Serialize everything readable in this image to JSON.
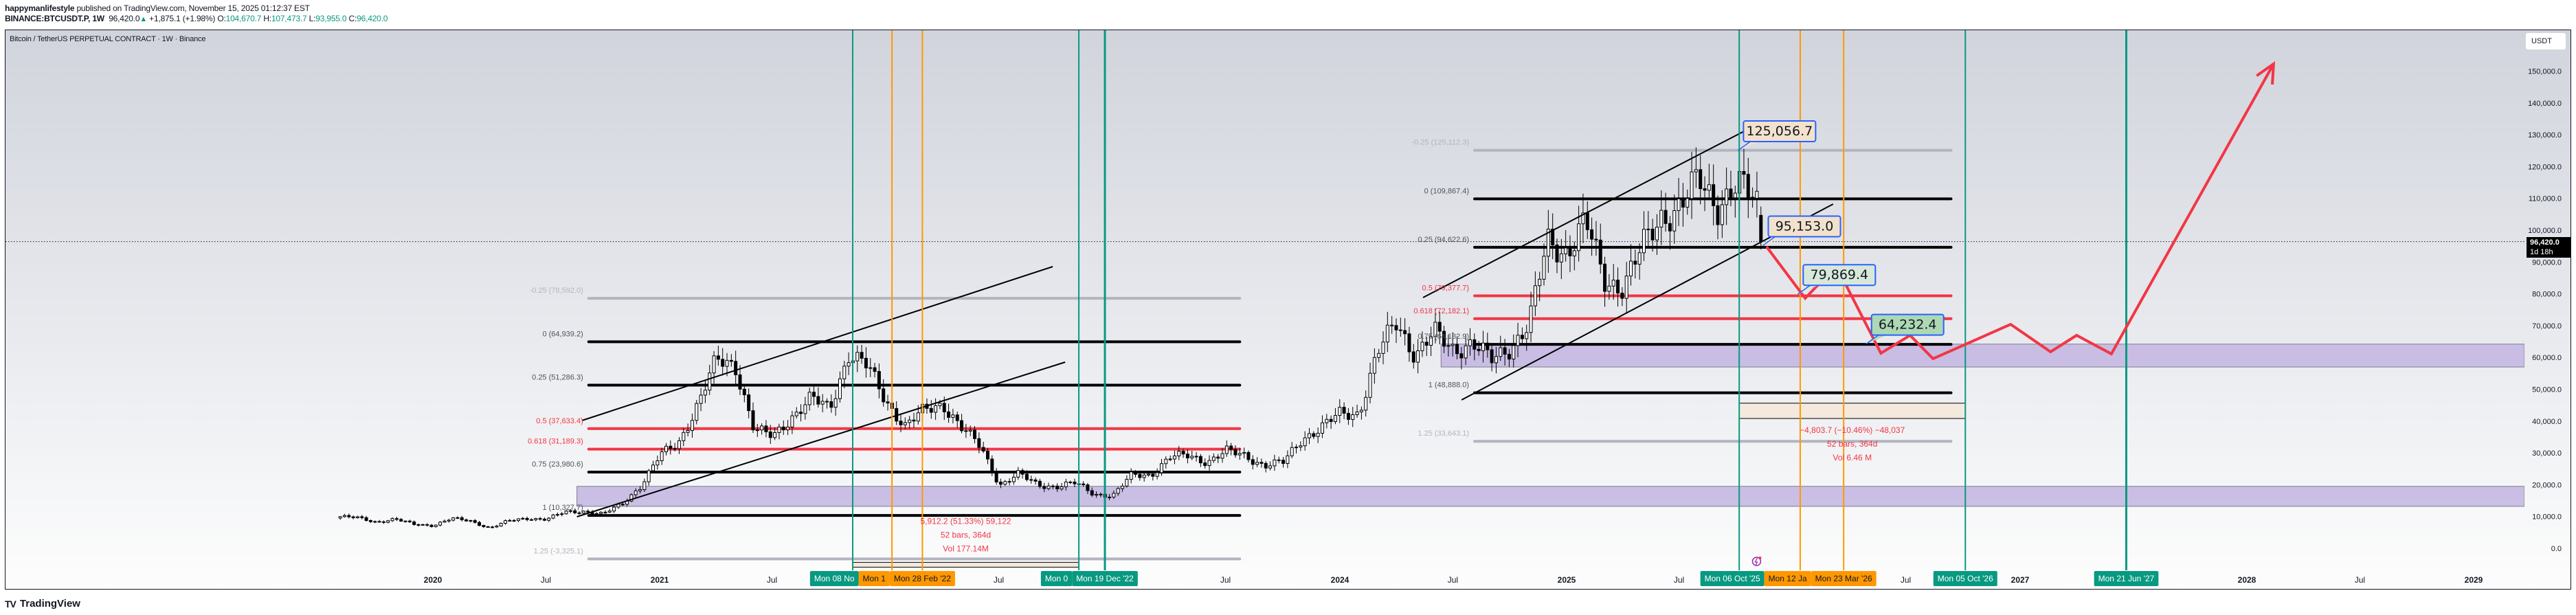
{
  "header": {
    "author": "happymanlifestyle",
    "published": "published on TradingView.com, November 15, 2025 01:12:37 EST",
    "symbol": "BINANCE:BTCUSDT.P, 1W",
    "last": "96,420.0",
    "change": "+1,875.1 (+1.98%)",
    "o_label": "O:",
    "o": "104,670.7",
    "h_label": "H:",
    "h": "107,473.7",
    "l_label": "L:",
    "l": "93,955.0",
    "c_label": "C:",
    "c": "96,420.0"
  },
  "chart_title": "Bitcoin / TetherUS PERPETUAL CONTRACT · 1W · Binance",
  "footer": {
    "brand": "TradingView",
    "logo_icon": "tradingview-logo-icon"
  },
  "price_axis": {
    "currency": "USDT",
    "ticks": [
      "150,000.0",
      "140,000.0",
      "130,000.0",
      "120,000.0",
      "110,000.0",
      "100,000.0",
      "90,000.0",
      "80,000.0",
      "70,000.0",
      "60,000.0",
      "50,000.0",
      "40,000.0",
      "30,000.0",
      "20,000.0",
      "10,000.0",
      "0.0"
    ],
    "tick_values": [
      150000,
      140000,
      130000,
      120000,
      110000,
      100000,
      90000,
      80000,
      70000,
      60000,
      50000,
      40000,
      30000,
      20000,
      10000,
      0
    ],
    "last_price": "96,420.0",
    "last_price_value": 96420,
    "countdown": "1d 18h"
  },
  "time_axis": {
    "ticks": [
      {
        "label": "2020",
        "date": "2020-01-01"
      },
      {
        "label": "Jul",
        "date": "2020-07-01"
      },
      {
        "label": "2021",
        "date": "2021-01-01"
      },
      {
        "label": "Jul",
        "date": "2021-07-01"
      },
      {
        "label": "Jul",
        "date": "2022-07-01"
      },
      {
        "label": "Jul",
        "date": "2023-07-01"
      },
      {
        "label": "2024",
        "date": "2024-01-01"
      },
      {
        "label": "Jul",
        "date": "2024-07-01"
      },
      {
        "label": "2025",
        "date": "2025-01-01"
      },
      {
        "label": "Jul",
        "date": "2025-07-01"
      },
      {
        "label": "Jul",
        "date": "2026-07-01"
      },
      {
        "label": "2027",
        "date": "2027-01-01"
      },
      {
        "label": "2028",
        "date": "2028-01-01"
      },
      {
        "label": "Jul",
        "date": "2028-07-01"
      },
      {
        "label": "2029",
        "date": "2029-01-01"
      }
    ]
  },
  "vertical_markers": [
    {
      "label": "Mon 08 No",
      "date": "2021-11-08",
      "color": "#089981"
    },
    {
      "label": "Mon 1",
      "date": "2022-01-10",
      "color": "#ff9800"
    },
    {
      "label": "Mon 28 Feb '22",
      "date": "2022-02-28",
      "color": "#ff9800"
    },
    {
      "label": "Mon 0",
      "date": "2022-11-07",
      "color": "#089981"
    },
    {
      "label": "Mon 19 Dec '22",
      "date": "2022-12-19",
      "color": "#089981",
      "thick": true
    },
    {
      "label": "Mon 06 Oct '25",
      "date": "2025-10-06",
      "color": "#089981"
    },
    {
      "label": "Mon 12 Ja",
      "date": "2026-01-12",
      "color": "#ff9800"
    },
    {
      "label": "Mon 23 Mar '26",
      "date": "2026-03-23",
      "color": "#ff9800"
    },
    {
      "label": "Mon 05 Oct '26",
      "date": "2026-10-05",
      "color": "#089981"
    },
    {
      "label": "Mon 21 Jun '27",
      "date": "2027-06-21",
      "color": "#089981",
      "thick": true
    }
  ],
  "fib_retracements": [
    {
      "from": "2020-09-08",
      "to": "2023-07-24",
      "levels": [
        {
          "ratio": -0.25,
          "label": "-0.25 (78,592.0)",
          "price": 78592.0
        },
        {
          "ratio": 0,
          "label": "0 (64,939.2)",
          "price": 64939.2
        },
        {
          "ratio": 0.25,
          "label": "0.25 (51,286.3)",
          "price": 51286.3
        },
        {
          "ratio": 0.5,
          "label": "0.5 (37,633.4)",
          "price": 37633.4
        },
        {
          "ratio": 0.618,
          "label": "0.618 (31,189.3)",
          "price": 31189.3
        },
        {
          "ratio": 0.75,
          "label": "0.75 (23,980.6)",
          "price": 23980.6
        },
        {
          "ratio": 1,
          "label": "1 (10,327.7)",
          "price": 10327.7
        },
        {
          "ratio": 1.25,
          "label": "1.25 (-3,325.1)",
          "price": -3325.1
        }
      ]
    },
    {
      "from": "2024-08-05",
      "to": "2026-09-12",
      "levels": [
        {
          "ratio": -0.25,
          "label": "-0.25 (125,112.3)",
          "price": 125112.3
        },
        {
          "ratio": 0,
          "label": "0 (109,867.4)",
          "price": 109867.4
        },
        {
          "ratio": 0.25,
          "label": "0.25 (94,622.6)",
          "price": 94622.6
        },
        {
          "ratio": 0.5,
          "label": "0.5 (79,377.7)",
          "price": 79377.7
        },
        {
          "ratio": 0.618,
          "label": "0.618 (72,182.1)",
          "price": 72182.1
        },
        {
          "ratio": 0.75,
          "label": "0.75 (64,132.9)",
          "price": 64132.9
        },
        {
          "ratio": 1,
          "label": "1 (48,888.0)",
          "price": 48888.0
        },
        {
          "ratio": 1.25,
          "label": "1.25 (33,643.1)",
          "price": 33643.1
        }
      ]
    }
  ],
  "zones": [
    {
      "from": "2020-08-20",
      "price_top": 19500,
      "price_bottom": 13200,
      "color": "#c5b8e2"
    },
    {
      "from": "2024-06-12",
      "price_top": 64200,
      "price_bottom": 57000,
      "color": "#c5b8e2"
    }
  ],
  "trend_lines": [
    {
      "from": [
        "2020-08-28",
        40173
      ],
      "to": [
        "2022-09-26",
        88553
      ]
    },
    {
      "from": [
        "2020-08-20",
        9935
      ],
      "to": [
        "2022-10-16",
        58531
      ]
    },
    {
      "from": [
        "2024-05-14",
        78834
      ],
      "to": [
        "2025-10-16",
        131317
      ]
    },
    {
      "from": [
        "2024-07-15",
        46652
      ],
      "to": [
        "2026-03-06",
        108207
      ]
    }
  ],
  "projection_path": {
    "color": "#f23645",
    "points": [
      [
        "2025-11-19",
        94816
      ],
      [
        "2026-01-20",
        78618
      ],
      [
        "2026-03-11",
        88769
      ],
      [
        "2026-05-22",
        61339
      ],
      [
        "2026-07-08",
        66955
      ],
      [
        "2026-08-14",
        59611
      ],
      [
        "2026-12-17",
        70410
      ],
      [
        "2027-02-19",
        61771
      ],
      [
        "2027-04-02",
        66955
      ],
      [
        "2027-05-28",
        61123
      ],
      [
        "2028-02-13",
        152268
      ]
    ]
  },
  "callouts": [
    {
      "text": "125,056.7",
      "date": "2025-10-04",
      "price": 125056.7,
      "bg": "#f2e2cb"
    },
    {
      "text": "95,153.0",
      "date": "2025-11-13",
      "price": 95153.0,
      "bg": "#f2e2cb"
    },
    {
      "text": "79,869.4",
      "date": "2026-01-08",
      "price": 79869.4,
      "bg": "#d7e8d9"
    },
    {
      "text": "64,232.4",
      "date": "2026-04-28",
      "price": 64232.4,
      "bg": "#acd8b4"
    }
  ],
  "measures": [
    {
      "from": "2021-11-08",
      "to": "2022-11-07",
      "price_top": -4400,
      "price_bottom": -5900,
      "lines": [
        "5,912.2 (51.33%) 59,122",
        "52 bars, 364d",
        "Vol 177.14M"
      ]
    },
    {
      "from": "2025-10-06",
      "to": "2026-10-05",
      "price_top": 45624,
      "price_bottom": 40820,
      "lines": [
        "−4,803.7 (−10.46%) −48,037",
        "52 bars, 364d",
        "Vol 6.46 M"
      ]
    }
  ],
  "event_icon": {
    "name": "lightning-event-icon",
    "date": "2025-11-03",
    "color": "#9c27b0"
  },
  "colors": {
    "up": "#089981",
    "fib_black": "#000000",
    "fib_red": "#f23645",
    "fib_grey": "#b2b5be",
    "callout_border": "#2962ff",
    "zone": "#c5b8e2"
  },
  "chart_data": {
    "type": "candlestick",
    "interval": "1W",
    "ylim": [
      0,
      155000
    ],
    "xlim": [
      "2019-07-01",
      "2029-03-01"
    ],
    "grid": false,
    "monthly_close_start": "2019-07",
    "monthly_close": [
      10000,
      9600,
      8300,
      9150,
      7550,
      7200,
      9350,
      8600,
      6400,
      8600,
      9450,
      9140,
      11350,
      11650,
      10780,
      13800,
      19700,
      29000,
      33100,
      45200,
      58800,
      57700,
      37300,
      35000,
      41500,
      47100,
      43800,
      61300,
      57000,
      46200,
      38500,
      43200,
      45500,
      37700,
      31800,
      19900,
      23300,
      20050,
      19400,
      20500,
      17150,
      16550,
      23100,
      23150,
      28500,
      29250,
      27200,
      30450,
      29250,
      25950,
      26950,
      34650,
      37700,
      42300,
      42600,
      61200,
      71300,
      60700,
      67500,
      62700,
      64600,
      58950,
      63300,
      70200,
      96400,
      93400,
      102400,
      84350,
      82500,
      94200,
      104600,
      107100,
      115700,
      108200,
      114000,
      109500,
      96420
    ],
    "last_bar": {
      "date": "2025-11-10",
      "open": 104670.7,
      "high": 107473.7,
      "low": 93955.0,
      "close": 96420.0
    }
  }
}
